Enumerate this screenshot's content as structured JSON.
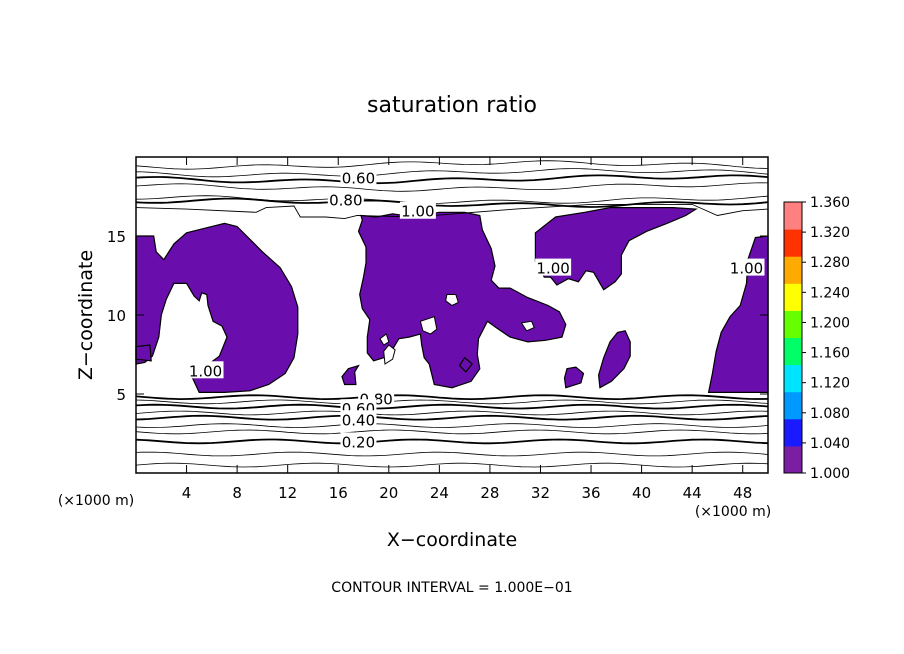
{
  "chart_data": {
    "type": "contour",
    "title": "saturation ratio",
    "xlabel": "X−coordinate",
    "ylabel": "Z−coordinate",
    "x_unit_label": "(×1000 m)",
    "y_unit_label": "(×1000 m)",
    "xlim": [
      0,
      50
    ],
    "ylim": [
      0,
      20
    ],
    "x_ticks": [
      4,
      8,
      12,
      16,
      20,
      24,
      28,
      32,
      36,
      40,
      44,
      48
    ],
    "y_ticks": [
      5,
      10,
      15
    ],
    "contour_interval_text": "CONTOUR INTERVAL = 1.000E−01",
    "contour_labels": [
      {
        "text": "0.60",
        "x": 17.6,
        "z": 18.7
      },
      {
        "text": "0.80",
        "x": 16.6,
        "z": 17.3
      },
      {
        "text": "1.00",
        "x": 22.3,
        "z": 16.6
      },
      {
        "text": "0.80",
        "x": 19.0,
        "z": 4.7
      },
      {
        "text": "0.60",
        "x": 17.6,
        "z": 4.1
      },
      {
        "text": "0.40",
        "x": 17.6,
        "z": 3.4
      },
      {
        "text": "0.20",
        "x": 17.6,
        "z": 2.0
      },
      {
        "text": "1.00",
        "x": 48.3,
        "z": 13.0
      },
      {
        "text": "1.00",
        "x": 5.5,
        "z": 6.5
      },
      {
        "text": "1.00",
        "x": 33.0,
        "z": 13.0
      }
    ],
    "colorbar": {
      "min": 1.0,
      "max": 1.36,
      "labels": [
        "1.360",
        "1.320",
        "1.280",
        "1.240",
        "1.200",
        "1.160",
        "1.120",
        "1.080",
        "1.040",
        "1.000"
      ],
      "colors": [
        "#7b1fa2",
        "#1a1aff",
        "#0099ff",
        "#00e5ff",
        "#00ff66",
        "#66ff00",
        "#ffff00",
        "#ffaa00",
        "#ff3300",
        "#ff8080"
      ]
    },
    "fill_color_supersaturated": "#6a0dad",
    "fill_threshold": 1.0
  }
}
